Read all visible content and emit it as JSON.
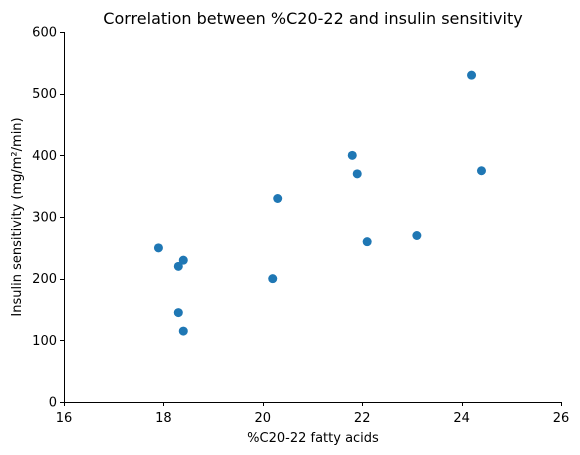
{
  "chart_data": {
    "type": "scatter",
    "title": "Correlation between %C20-22 and insulin sensitivity",
    "xlabel": "%C20-22 fatty acids",
    "ylabel": "Insulin sensitivity (mg/m²/min)",
    "xlim": [
      16,
      26
    ],
    "ylim": [
      0,
      600
    ],
    "x_ticks": [
      16,
      18,
      20,
      22,
      24,
      26
    ],
    "y_ticks": [
      0,
      100,
      200,
      300,
      400,
      500,
      600
    ],
    "grid": false,
    "legend": "none",
    "marker_color": "#1f77b4",
    "points": [
      {
        "x": 17.9,
        "y": 250
      },
      {
        "x": 18.3,
        "y": 220
      },
      {
        "x": 18.4,
        "y": 230
      },
      {
        "x": 18.3,
        "y": 145
      },
      {
        "x": 18.4,
        "y": 115
      },
      {
        "x": 20.2,
        "y": 200
      },
      {
        "x": 20.3,
        "y": 330
      },
      {
        "x": 21.8,
        "y": 400
      },
      {
        "x": 21.9,
        "y": 370
      },
      {
        "x": 22.1,
        "y": 260
      },
      {
        "x": 23.1,
        "y": 270
      },
      {
        "x": 24.2,
        "y": 530
      },
      {
        "x": 24.4,
        "y": 375
      }
    ]
  }
}
